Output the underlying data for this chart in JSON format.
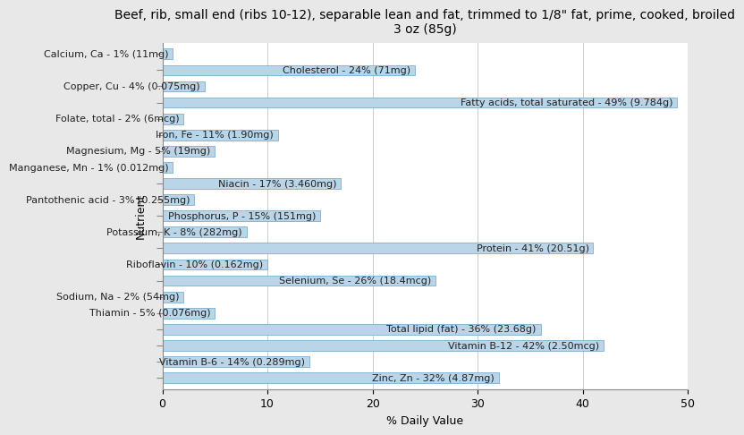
{
  "title": "Beef, rib, small end (ribs 10-12), separable lean and fat, trimmed to 1/8\" fat, prime, cooked, broiled\n3 oz (85g)",
  "xlabel": "% Daily Value",
  "ylabel": "Nutrient",
  "nutrients": [
    "Calcium, Ca - 1% (11mg)",
    "Cholesterol - 24% (71mg)",
    "Copper, Cu - 4% (0.075mg)",
    "Fatty acids, total saturated - 49% (9.784g)",
    "Folate, total - 2% (6mcg)",
    "Iron, Fe - 11% (1.90mg)",
    "Magnesium, Mg - 5% (19mg)",
    "Manganese, Mn - 1% (0.012mg)",
    "Niacin - 17% (3.460mg)",
    "Pantothenic acid - 3% (0.255mg)",
    "Phosphorus, P - 15% (151mg)",
    "Potassium, K - 8% (282mg)",
    "Protein - 41% (20.51g)",
    "Riboflavin - 10% (0.162mg)",
    "Selenium, Se - 26% (18.4mcg)",
    "Sodium, Na - 2% (54mg)",
    "Thiamin - 5% (0.076mg)",
    "Total lipid (fat) - 36% (23.68g)",
    "Vitamin B-12 - 42% (2.50mcg)",
    "Vitamin B-6 - 14% (0.289mg)",
    "Zinc, Zn - 32% (4.87mg)"
  ],
  "values": [
    1,
    24,
    4,
    49,
    2,
    11,
    5,
    1,
    17,
    3,
    15,
    8,
    41,
    10,
    26,
    2,
    5,
    36,
    42,
    14,
    32
  ],
  "bar_color": "#bad4e8",
  "bar_edge_color": "#7aafd4",
  "background_color": "#e8e8e8",
  "plot_background": "#ffffff",
  "xlim": [
    0,
    50
  ],
  "title_fontsize": 10,
  "label_fontsize": 8,
  "tick_fontsize": 9,
  "bar_height": 0.65
}
